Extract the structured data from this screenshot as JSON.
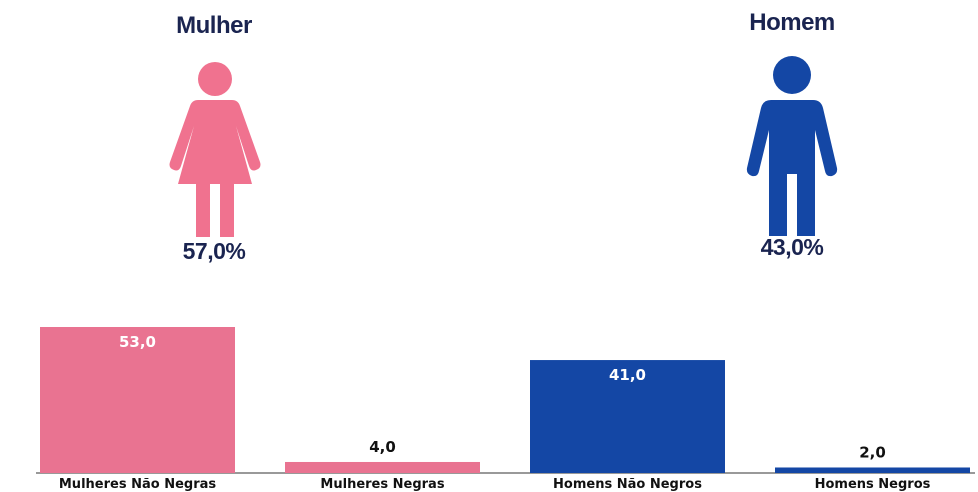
{
  "genders": {
    "female": {
      "title": "Mulher",
      "percent": "57,0%",
      "color": "#f0728f",
      "icon": "woman-icon"
    },
    "male": {
      "title": "Homem",
      "percent": "43,0%",
      "color": "#1447a5",
      "icon": "man-icon"
    }
  },
  "chart_data": {
    "type": "bar",
    "categories": [
      "Mulheres Não Negras",
      "Mulheres Negras",
      "Homens Não Negros",
      "Homens Negros"
    ],
    "values": [
      53.0,
      4.0,
      41.0,
      2.0
    ],
    "value_labels": [
      "53,0",
      "4,0",
      "41,0",
      "2,0"
    ],
    "colors": [
      "#e97391",
      "#e97391",
      "#1447a5",
      "#1447a5"
    ],
    "title": "",
    "xlabel": "",
    "ylabel": "",
    "ylim": [
      0,
      53
    ],
    "grid": false
  }
}
